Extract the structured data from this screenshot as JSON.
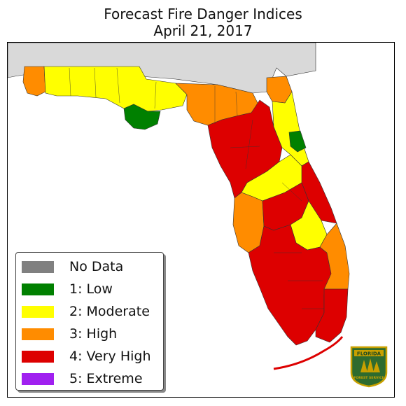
{
  "title": {
    "line1": "Forecast Fire Danger Indices",
    "line2": "April 21, 2017"
  },
  "legend": {
    "items": [
      {
        "label": "No Data",
        "color": "#808080"
      },
      {
        "label": "1: Low",
        "color": "#008000"
      },
      {
        "label": "2: Moderate",
        "color": "#ffff00"
      },
      {
        "label": "3: High",
        "color": "#ff8c00"
      },
      {
        "label": "4: Very High",
        "color": "#dd0000"
      },
      {
        "label": "5: Extreme",
        "color": "#a020f0"
      }
    ]
  },
  "map": {
    "background_states_color": "#d9d9d9",
    "regions": [
      {
        "name": "far-west-panhandle",
        "level": "3: High"
      },
      {
        "name": "central-panhandle",
        "level": "2: Moderate"
      },
      {
        "name": "gulf-coast-panhandle",
        "level": "1: Low"
      },
      {
        "name": "big-bend",
        "level": "3: High"
      },
      {
        "name": "north-central",
        "level": "4: Very High"
      },
      {
        "name": "northeast",
        "level": "2: Moderate"
      },
      {
        "name": "st-johns",
        "level": "1: Low"
      },
      {
        "name": "central-florida",
        "level": "2: Moderate"
      },
      {
        "name": "tampa-bay",
        "level": "3: High"
      },
      {
        "name": "south-florida",
        "level": "4: Very High"
      },
      {
        "name": "southeast",
        "level": "3: High"
      }
    ]
  },
  "logo": {
    "line1": "FLORIDA",
    "line2": "FOREST SERVICE"
  }
}
